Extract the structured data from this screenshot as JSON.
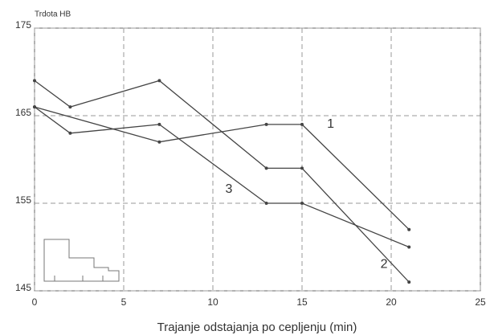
{
  "chart_data": {
    "type": "line",
    "ylabel": "Trdota HB",
    "xlabel": "Trajanje odstajanja po cepljenju (min)",
    "xlim": [
      0,
      25
    ],
    "xticks": [
      0,
      5,
      10,
      15,
      20,
      25
    ],
    "ylim": [
      145,
      175
    ],
    "yticks": [
      145,
      155,
      165,
      175
    ],
    "grid": true,
    "series": [
      {
        "color": "#444",
        "x": [
          0,
          2,
          7,
          13,
          15,
          21
        ],
        "values": [
          169,
          166,
          169,
          159,
          159,
          146
        ]
      },
      {
        "color": "#444",
        "x": [
          0,
          2,
          7,
          13,
          15,
          21
        ],
        "values": [
          166,
          163,
          164,
          155,
          155,
          150
        ]
      },
      {
        "color": "#444",
        "x": [
          0,
          7,
          13,
          15,
          21
        ],
        "values": [
          166,
          162,
          164,
          164,
          152
        ]
      }
    ],
    "annotations": [
      {
        "text": "1",
        "x": 16.6,
        "y": 164
      },
      {
        "text": "2",
        "x": 19.6,
        "y": 148
      },
      {
        "text": "3",
        "x": 10.9,
        "y": 156.6
      }
    ]
  }
}
